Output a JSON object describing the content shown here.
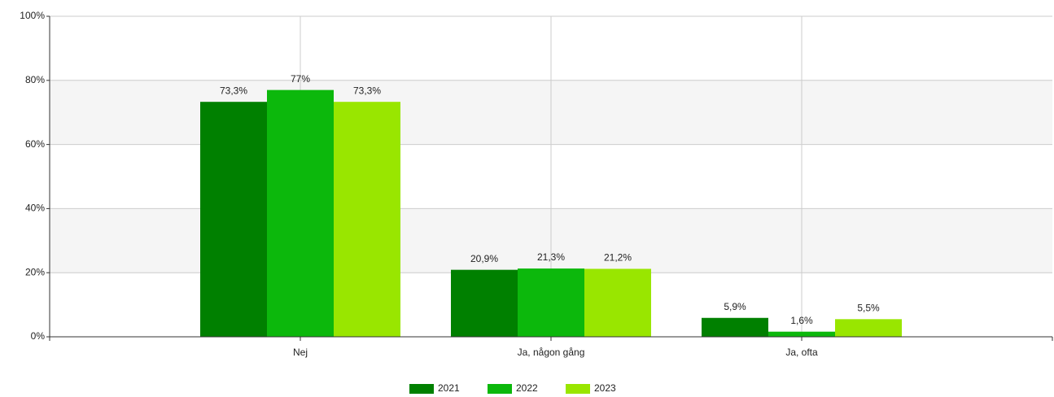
{
  "chart_data": {
    "type": "bar",
    "categories": [
      "Nej",
      "Ja, någon gång",
      "Ja, ofta"
    ],
    "series": [
      {
        "name": "2021",
        "color": "#008000",
        "values": [
          73.3,
          20.9,
          5.9
        ],
        "value_labels": [
          "73,3%",
          "20,9%",
          "5,9%"
        ]
      },
      {
        "name": "2022",
        "color": "#0cb80c",
        "values": [
          77,
          21.3,
          1.6
        ],
        "value_labels": [
          "77%",
          "21,3%",
          "1,6%"
        ]
      },
      {
        "name": "2023",
        "color": "#99e600",
        "values": [
          73.3,
          21.2,
          5.5
        ],
        "value_labels": [
          "73,3%",
          "21,2%",
          "5,5%"
        ]
      }
    ],
    "ylim": [
      0,
      100
    ],
    "yticks": [
      {
        "value": 0,
        "label": "0%"
      },
      {
        "value": 20,
        "label": "20%"
      },
      {
        "value": 40,
        "label": "40%"
      },
      {
        "value": 60,
        "label": "60%"
      },
      {
        "value": 80,
        "label": "80%"
      },
      {
        "value": 100,
        "label": "100%"
      }
    ],
    "grid": true,
    "legend": "bottom"
  }
}
